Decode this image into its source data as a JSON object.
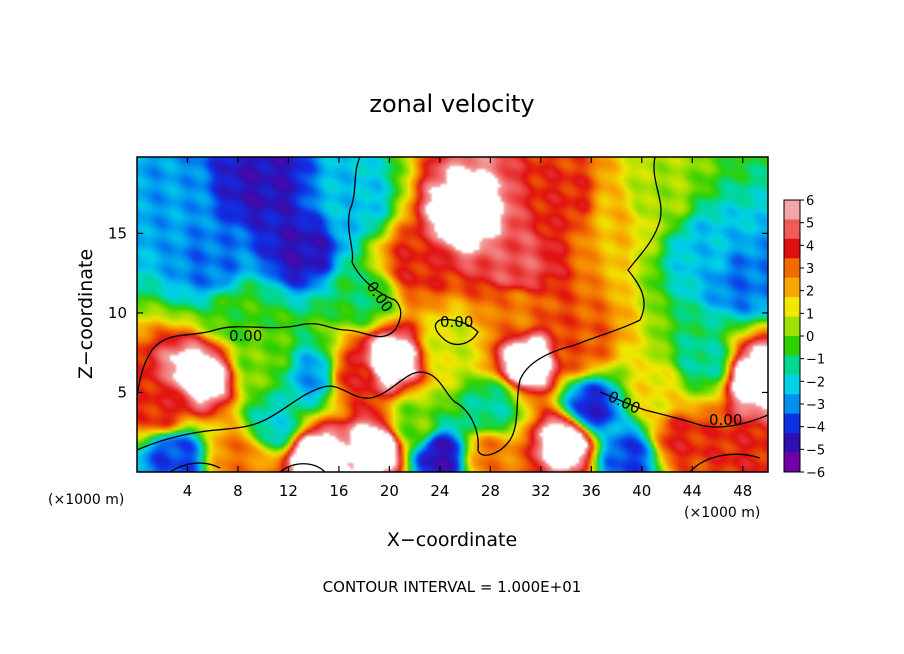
{
  "chart_data": {
    "type": "heatmap",
    "title": "zonal velocity",
    "xlabel": "X−coordinate",
    "ylabel": "Z−coordinate",
    "x_unit_left": "(×1000 m)",
    "x_unit_right": "(×1000 m)",
    "footer": "CONTOUR INTERVAL = 1.000E+01",
    "xlim": [
      0,
      50
    ],
    "ylim": [
      0,
      19.8
    ],
    "x_ticks": [
      4,
      8,
      12,
      16,
      20,
      24,
      28,
      32,
      36,
      40,
      44,
      48
    ],
    "y_ticks": [
      5,
      10,
      15
    ],
    "colorbar": {
      "range": [
        -6,
        6
      ],
      "ticks": [
        "6",
        "5",
        "4",
        "3",
        "2",
        "1",
        "0",
        "−1",
        "−2",
        "−3",
        "−4",
        "−5",
        "−6"
      ],
      "colors": [
        "#f4a6a6",
        "#f05a5a",
        "#e01010",
        "#f26b00",
        "#f7a800",
        "#f0e800",
        "#a0e000",
        "#30d000",
        "#00d890",
        "#00d0e8",
        "#0090f0",
        "#1030e8",
        "#3010b0",
        "#7000a8"
      ]
    },
    "contour_labels": [
      "0.00",
      "0.00",
      "0.00",
      "0.00",
      "0.00"
    ],
    "field_anchors": [
      {
        "x": 2,
        "z": 17,
        "u": -3
      },
      {
        "x": 6,
        "z": 13,
        "u": -3.5
      },
      {
        "x": 10,
        "z": 18,
        "u": -5
      },
      {
        "x": 13,
        "z": 14,
        "u": -5
      },
      {
        "x": 17,
        "z": 17,
        "u": -2.5
      },
      {
        "x": 18,
        "z": 11,
        "u": -1
      },
      {
        "x": 26,
        "z": 16,
        "u": 7
      },
      {
        "x": 22,
        "z": 13,
        "u": 4
      },
      {
        "x": 30,
        "z": 13,
        "u": 5
      },
      {
        "x": 34,
        "z": 17,
        "u": 4
      },
      {
        "x": 38,
        "z": 16,
        "u": 2
      },
      {
        "x": 41,
        "z": 17,
        "u": 0.5
      },
      {
        "x": 45,
        "z": 14,
        "u": -2.5
      },
      {
        "x": 48,
        "z": 12,
        "u": -3.5
      },
      {
        "x": 49,
        "z": 6,
        "u": 7
      },
      {
        "x": 45,
        "z": 7,
        "u": -1.5
      },
      {
        "x": 41,
        "z": 5,
        "u": 1.5
      },
      {
        "x": 35,
        "z": 8,
        "u": 3.5
      },
      {
        "x": 31,
        "z": 7,
        "u": 7
      },
      {
        "x": 28,
        "z": 4,
        "u": -1.5
      },
      {
        "x": 25,
        "z": 8,
        "u": 1
      },
      {
        "x": 20,
        "z": 7,
        "u": 7
      },
      {
        "x": 17,
        "z": 6,
        "u": 4
      },
      {
        "x": 14,
        "z": 6,
        "u": -3
      },
      {
        "x": 10,
        "z": 7,
        "u": 0
      },
      {
        "x": 5,
        "z": 6,
        "u": 7
      },
      {
        "x": 2,
        "z": 4,
        "u": 4
      },
      {
        "x": 3,
        "z": 1,
        "u": -4
      },
      {
        "x": 8,
        "z": 1,
        "u": 3
      },
      {
        "x": 11,
        "z": 3,
        "u": -2
      },
      {
        "x": 14,
        "z": 1,
        "u": 7
      },
      {
        "x": 19,
        "z": 1.5,
        "u": 7
      },
      {
        "x": 24,
        "z": 1,
        "u": -5
      },
      {
        "x": 28,
        "z": 1,
        "u": 3
      },
      {
        "x": 34,
        "z": 2,
        "u": 7
      },
      {
        "x": 39,
        "z": 1,
        "u": -4
      },
      {
        "x": 43,
        "z": 2,
        "u": 4
      },
      {
        "x": 48,
        "z": 1,
        "u": 4
      },
      {
        "x": 30,
        "z": 10,
        "u": 3
      },
      {
        "x": 8,
        "z": 10,
        "u": -0.5
      },
      {
        "x": 36,
        "z": 4,
        "u": -4.5
      },
      {
        "x": 22,
        "z": 3,
        "u": 0
      }
    ]
  }
}
